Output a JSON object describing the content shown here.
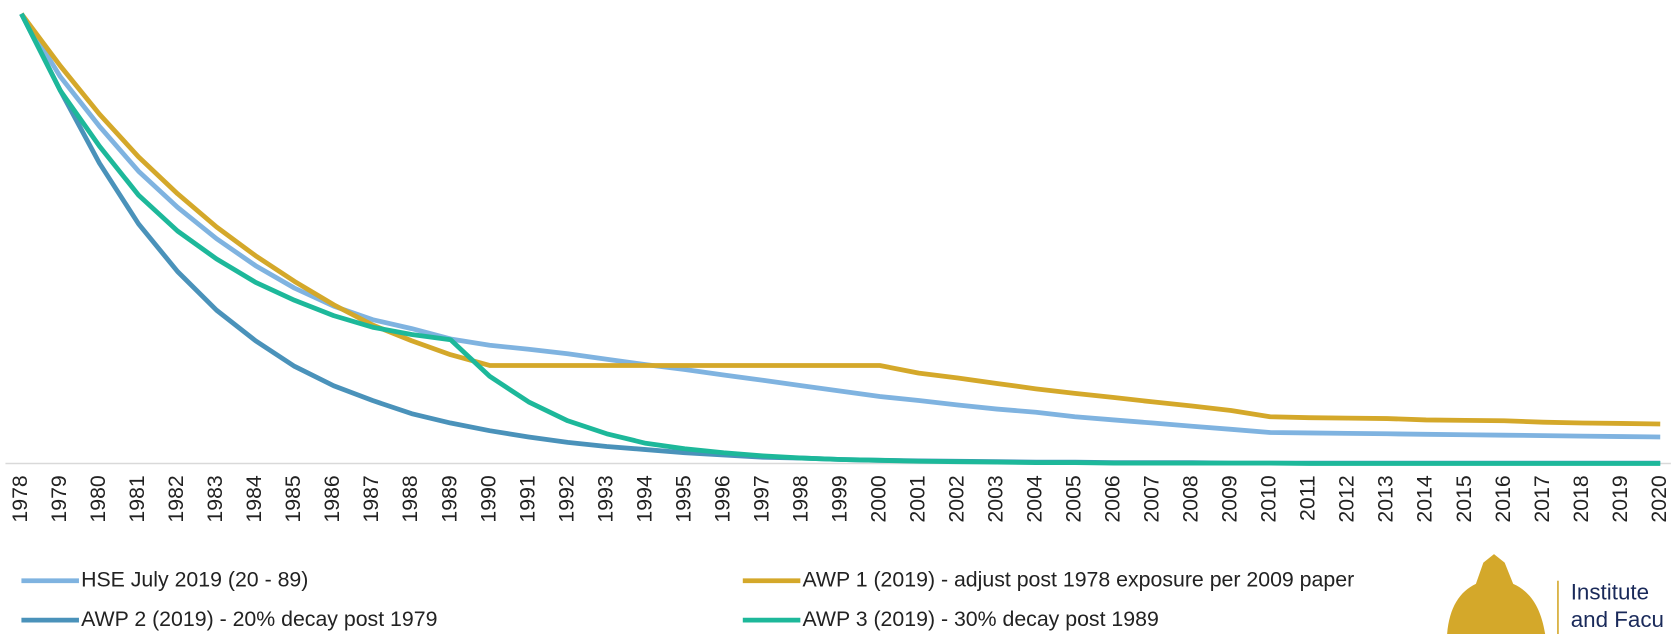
{
  "chart_data": {
    "type": "line",
    "categories": [
      "1978",
      "1979",
      "1980",
      "1981",
      "1982",
      "1983",
      "1984",
      "1985",
      "1986",
      "1987",
      "1988",
      "1989",
      "1990",
      "1991",
      "1992",
      "1993",
      "1994",
      "1995",
      "1996",
      "1997",
      "1998",
      "1999",
      "2000",
      "2001",
      "2002",
      "2003",
      "2004",
      "2005",
      "2006",
      "2007",
      "2008",
      "2009",
      "2010",
      "2011",
      "2012",
      "2013",
      "2014",
      "2015",
      "2016",
      "2017",
      "2018",
      "2019",
      "2020"
    ],
    "ylim": [
      0,
      100
    ],
    "series": [
      {
        "name": "HSE July 2019 (20 - 89)",
        "color": "#7fb3e0",
        "values": [
          100,
          86,
          75,
          65,
          57,
          50,
          44,
          39,
          35,
          32,
          30,
          27.7,
          26.3,
          25.4,
          24.4,
          23.2,
          22,
          20.9,
          19.7,
          18.5,
          17.3,
          16.1,
          14.9,
          14,
          13,
          12.1,
          11.4,
          10.4,
          9.7,
          9,
          8.3,
          7.6,
          6.9,
          6.8,
          6.7,
          6.6,
          6.5,
          6.4,
          6.3,
          6.2,
          6.1,
          6.0,
          5.9
        ]
      },
      {
        "name": "AWP 1 (2019) - adjust post 1978 exposure per 2009 paper",
        "color": "#d4a82a",
        "values": [
          100,
          88.4,
          77.7,
          68.2,
          60,
          52.6,
          46.2,
          40.5,
          35.3,
          30.8,
          27.3,
          24.2,
          21.8,
          21.8,
          21.8,
          21.8,
          21.8,
          21.8,
          21.8,
          21.8,
          21.8,
          21.8,
          21.8,
          20.1,
          19,
          17.8,
          16.6,
          15.6,
          14.7,
          13.7,
          12.8,
          11.8,
          10.4,
          10.2,
          10.1,
          10,
          9.7,
          9.6,
          9.5,
          9.2,
          9,
          8.9,
          8.8
        ]
      },
      {
        "name": "AWP 2 (2019) - 20% decay post 1979",
        "color": "#4a92ba",
        "values": [
          100,
          82.9,
          66.8,
          53.3,
          42.7,
          34.1,
          27.3,
          21.6,
          17.3,
          14,
          11.1,
          9,
          7.3,
          5.9,
          4.7,
          3.8,
          3.1,
          2.4,
          1.9,
          1.4,
          1.2,
          0.9,
          0.7,
          0.6,
          0.5,
          0.4,
          0.3,
          0.3,
          0.2,
          0.2,
          0.2,
          0.1,
          0.1,
          0.1,
          0.1,
          0.1,
          0.1,
          0.1,
          0.1,
          0.1,
          0.1,
          0.1,
          0.1
        ]
      },
      {
        "name": "AWP 3 (2019) - 30% decay post 1989",
        "color": "#1db89a",
        "values": [
          100,
          82.9,
          70.6,
          59.7,
          51.7,
          45.5,
          40.3,
          36.3,
          32.9,
          30.3,
          28.7,
          27.5,
          19.4,
          13.7,
          9.5,
          6.6,
          4.5,
          3.3,
          2.4,
          1.7,
          1.2,
          0.9,
          0.7,
          0.5,
          0.4,
          0.3,
          0.2,
          0.2,
          0.1,
          0.1,
          0.1,
          0.1,
          0.1,
          0,
          0,
          0,
          0,
          0,
          0,
          0,
          0,
          0,
          0
        ]
      }
    ],
    "logo": {
      "line1": "Institute",
      "line2": "and Facu"
    }
  }
}
